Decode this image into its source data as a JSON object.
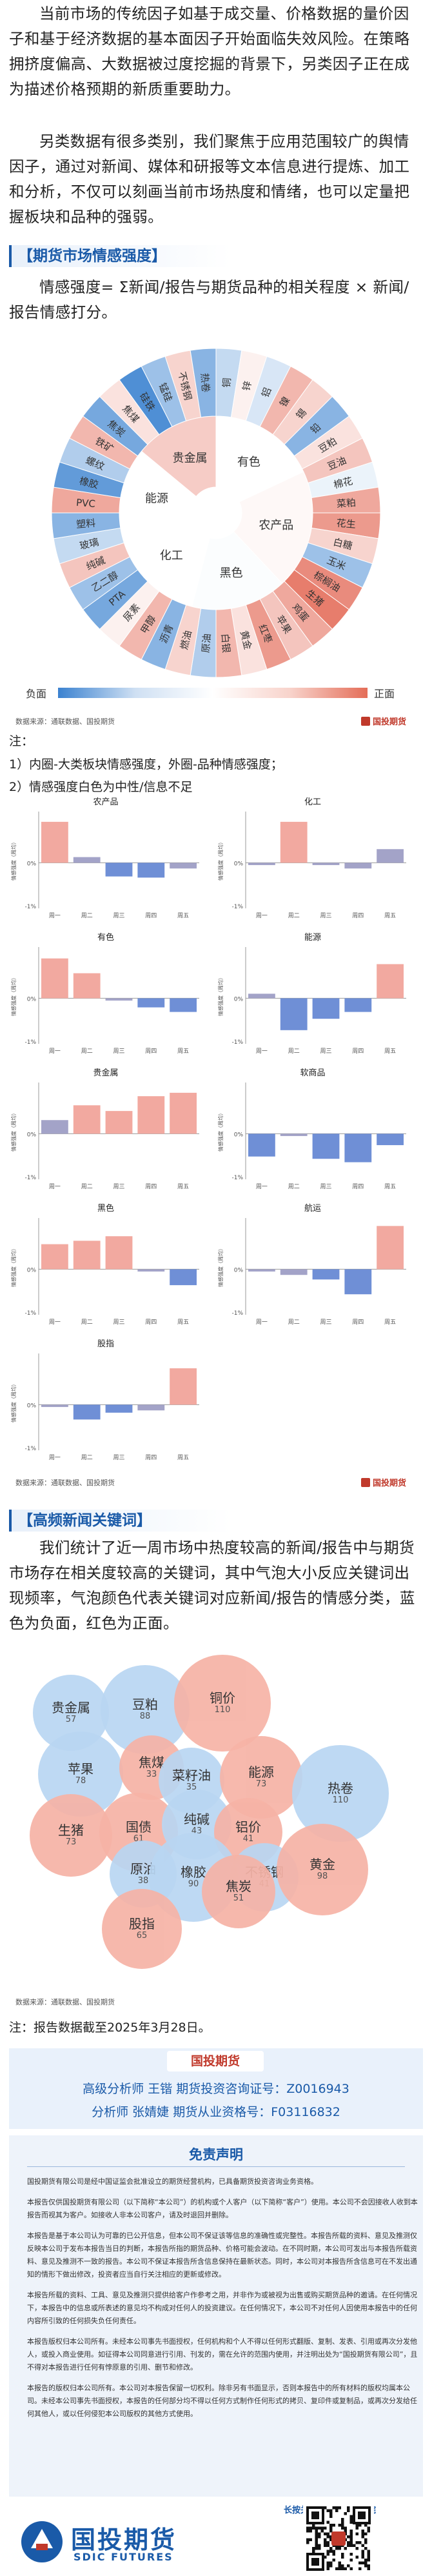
{
  "intro": {
    "p1": "当前市场的传统因子如基于成交量、价格数据的量价因子和基于经济数据的基本面因子开始面临失效风险。在策略拥挤度偏高、大数据被过度挖掘的背景下，另类因子正在成为描述价格预期的新质重要助力。",
    "p2": "另类数据有很多类别，我们聚焦于应用范围较广的舆情因子，通过对新闻、媒体和研报等文本信息进行提炼、加工和分析，不仅可以刻画当前市场热度和情绪，也可以定量把握板块和品种的强弱。"
  },
  "section1": {
    "title": "【期货市场情感强度】",
    "formula": "情感强度= Σ新闻/报告与期货品种的相关程度 × 新闻/报告情感打分。",
    "sectors": [
      "有色",
      "农产品",
      "黑色",
      "化工",
      "能源",
      "贵金属"
    ],
    "varieties": [
      "铜",
      "锌",
      "铝",
      "镍",
      "锡",
      "铅",
      "豆粕",
      "豆油",
      "棉花",
      "菜粕",
      "花生",
      "白糖",
      "玉米",
      "棕榈油",
      "生猪",
      "鸡蛋",
      "苹果",
      "红枣",
      "黄金",
      "白银",
      "原油",
      "燃油",
      "沥青",
      "甲醇",
      "尿素",
      "PTA",
      "乙二醇",
      "纯碱",
      "玻璃",
      "塑料",
      "PVC",
      "橡胶",
      "螺纹",
      "铁矿",
      "焦炭",
      "焦煤",
      "硅铁",
      "锰硅",
      "不锈钢",
      "热卷"
    ],
    "legend_neg": "负面",
    "legend_pos": "正面",
    "source": "数据来源：通联数据、国投期货",
    "notes_label": "注：",
    "note1": "1）内圈-大类板块情感强度，外圈-品种情感强度；",
    "note2": "2）情感强度白色为中性/信息不足",
    "colors": {
      "pos": "#e8826f",
      "neg": "#5a9fdc",
      "bar_red": "#f2a9a0",
      "bar_purple": "#a3a3c8",
      "bar_blue": "#6f8fd6"
    }
  },
  "sentiment_charts": [
    {
      "title": "农产品",
      "series": [
        0.36,
        0.05,
        -0.12,
        -0.13,
        -0.05
      ]
    },
    {
      "title": "化工",
      "series": [
        -0.02,
        0.36,
        -0.02,
        -0.05,
        0.12
      ]
    },
    {
      "title": "有色",
      "series": [
        0.35,
        0.22,
        -0.02,
        -0.08,
        -0.12
      ]
    },
    {
      "title": "能源",
      "series": [
        0.04,
        -0.28,
        -0.18,
        -0.12,
        0.3
      ]
    },
    {
      "title": "贵金属",
      "series": [
        0.12,
        0.25,
        0.2,
        0.33,
        0.36
      ]
    },
    {
      "title": "软商品",
      "series": [
        -0.2,
        -0.02,
        -0.22,
        -0.25,
        -0.1
      ]
    },
    {
      "title": "黑色",
      "series": [
        0.22,
        0.25,
        0.29,
        -0.02,
        -0.14
      ]
    },
    {
      "title": "航运",
      "series": [
        -0.02,
        -0.05,
        -0.09,
        -0.22,
        0.38
      ]
    },
    {
      "title": "股指",
      "series": [
        -0.02,
        -0.13,
        -0.07,
        -0.05,
        0.32
      ]
    }
  ],
  "chart_common": {
    "ylabel": "情感强度（周均）",
    "xcats": [
      "周一",
      "周二",
      "周三",
      "周四",
      "周五"
    ],
    "zero": "0%",
    "neg": "-1%"
  },
  "chart_data": [
    {
      "type": "bar",
      "title": "农产品",
      "categories": [
        "周一",
        "周二",
        "周三",
        "周四",
        "周五"
      ],
      "values": [
        0.36,
        0.05,
        -0.12,
        -0.13,
        -0.05
      ]
    },
    {
      "type": "bar",
      "title": "化工",
      "categories": [
        "周一",
        "周二",
        "周三",
        "周四",
        "周五"
      ],
      "values": [
        -0.02,
        0.36,
        -0.02,
        -0.05,
        0.12
      ]
    },
    {
      "type": "bar",
      "title": "有色",
      "categories": [
        "周一",
        "周二",
        "周三",
        "周四",
        "周五"
      ],
      "values": [
        0.35,
        0.22,
        -0.02,
        -0.08,
        -0.12
      ]
    },
    {
      "type": "bar",
      "title": "能源",
      "categories": [
        "周一",
        "周二",
        "周三",
        "周四",
        "周五"
      ],
      "values": [
        0.04,
        -0.28,
        -0.18,
        -0.12,
        0.3
      ]
    },
    {
      "type": "bar",
      "title": "贵金属",
      "categories": [
        "周一",
        "周二",
        "周三",
        "周四",
        "周五"
      ],
      "values": [
        0.12,
        0.25,
        0.2,
        0.33,
        0.36
      ]
    },
    {
      "type": "bar",
      "title": "软商品",
      "categories": [
        "周一",
        "周二",
        "周三",
        "周四",
        "周五"
      ],
      "values": [
        -0.2,
        -0.02,
        -0.22,
        -0.25,
        -0.1
      ]
    },
    {
      "type": "bar",
      "title": "黑色",
      "categories": [
        "周一",
        "周二",
        "周三",
        "周四",
        "周五"
      ],
      "values": [
        0.22,
        0.25,
        0.29,
        -0.02,
        -0.14
      ]
    },
    {
      "type": "bar",
      "title": "航运",
      "categories": [
        "周一",
        "周二",
        "周三",
        "周四",
        "周五"
      ],
      "values": [
        -0.02,
        -0.05,
        -0.09,
        -0.22,
        0.38
      ]
    },
    {
      "type": "bar",
      "title": "股指",
      "categories": [
        "周一",
        "周二",
        "周三",
        "周四",
        "周五"
      ],
      "values": [
        -0.02,
        -0.13,
        -0.07,
        -0.05,
        0.32
      ]
    }
  ],
  "brand_small": "国投期货",
  "chart_source": "数据来源：通联数据、国投期货",
  "section2": {
    "title": "【高频新闻关键词】",
    "text": "我们统计了近一周市场中热度较高的新闻/报告中与期货市场存在相关度较高的关键词，其中气泡大小反应关键词出现频率，气泡颜色代表关键词对应新闻/报告的情感分类，蓝色为负面，红色为正面。",
    "bubbles": [
      {
        "name": "贵金属",
        "value": "57",
        "tone": "neg"
      },
      {
        "name": "豆粕",
        "value": "88",
        "tone": "neg"
      },
      {
        "name": "铜价",
        "value": "110",
        "tone": "pos"
      },
      {
        "name": "苹果",
        "value": "78",
        "tone": "neg"
      },
      {
        "name": "焦煤",
        "value": "33",
        "tone": "pos"
      },
      {
        "name": "菜籽油",
        "value": "35",
        "tone": "neg"
      },
      {
        "name": "能源",
        "value": "73",
        "tone": "pos"
      },
      {
        "name": "热卷",
        "value": "110",
        "tone": "neg"
      },
      {
        "name": "生猪",
        "value": "73",
        "tone": "pos"
      },
      {
        "name": "国债",
        "value": "61",
        "tone": "pos"
      },
      {
        "name": "纯碱",
        "value": "43",
        "tone": "neg"
      },
      {
        "name": "铝价",
        "value": "41",
        "tone": "pos"
      },
      {
        "name": "原油",
        "value": "38",
        "tone": "neg"
      },
      {
        "name": "橡胶",
        "value": "90",
        "tone": "neg"
      },
      {
        "name": "不锈钢",
        "value": "41",
        "tone": "neg"
      },
      {
        "name": "焦炭",
        "value": "51",
        "tone": "pos"
      },
      {
        "name": "黄金",
        "value": "98",
        "tone": "pos"
      },
      {
        "name": "股指",
        "value": "65",
        "tone": "pos"
      }
    ],
    "source": "数据来源：通联数据、国投期货",
    "note": "注：报告数据截至2025年3月28日。"
  },
  "contact": {
    "header": "国投期货",
    "line1": "高级分析师  王锴  期货投资咨询证号：Z0016943",
    "line2": "分析师  张婧婕  期货从业资格号：F03116832"
  },
  "disclaimer": {
    "title": "免责声明",
    "paras": [
      "国投期货有限公司是经中国证监会批准设立的期货经营机构，已具备期货投资咨询业务资格。",
      "本报告仅供国投期货有限公司（以下简称“本公司”）的机构或个人客户（以下简称“客户”）使用。本公司不会因接收人收到本报告而视其为客户。如接收人非本公司客户，请及时退回并删除。",
      "本报告是基于本公司认为可靠的已公开信息，但本公司不保证该等信息的准确性或完整性。本报告所载的资料、意见及推测仅反映本公司于发布本报告当日的判断，本报告所指的期货品种、价格可能会波动。在不同时期，本公司可发出与本报告所载资料、意见及推测不一致的报告。本公司不保证本报告所含信息保持在最新状态。同时，本公司对本报告所含信息可在不发出通知的情形下做出修改，投资者应当自行关注相应的更新或修改。",
      "本报告所载的资料、工具、意见及推测只提供给客户作参考之用，并非作为或被视为出售或购买期货品种的邀请。在任何情况下，本报告中的信息或所表述的意见均不构成对任何人的投资建议。在任何情况下，本公司不对任何人因使用本报告中的任何内容所引致的任何损失负任何责任。",
      "本报告版权归本公司所有。未经本公司事先书面授权，任何机构和个人不得以任何形式翻版、复制、发表、引用或再次分发他人，或投入商业使用。如征得本公司同意进行引用、刊发的，需在允许的范围内使用，并注明出处为“国投期货有限公司”，且不得对本报告进行任何有悖原意的引用、删节和修改。",
      "本报告的版权归本公司所有。本公司对本报告保留一切权利。除非另有书面显示，否则本报告中的所有材料的版权均属本公司。未经本公司事先书面授权，本报告的任何部分均不得以任何方式制作任何形式的拷贝、复印件或复制品，或再次分发给任何其他人，或以任何侵犯本公司版权的其他方式使用。"
    ],
    "qr_caption": "长按关注国投期货研究院",
    "logo_cn": "国投期货",
    "logo_en": "SDIC FUTURES"
  }
}
